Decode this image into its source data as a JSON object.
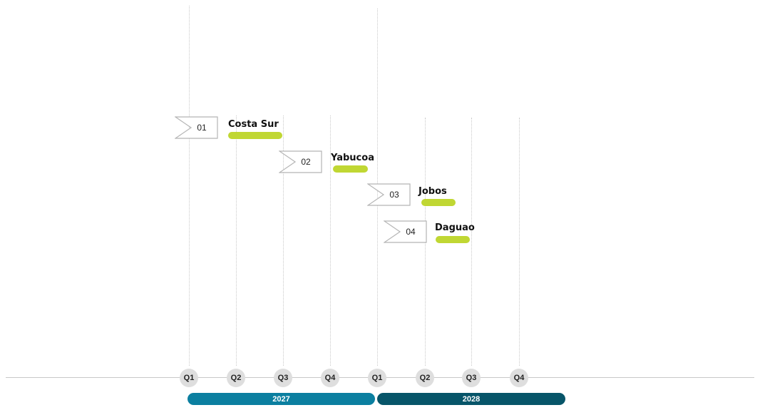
{
  "timeline": {
    "years": [
      {
        "label": "2027",
        "color": "#0b7fa0"
      },
      {
        "label": "2028",
        "color": "#075569"
      }
    ],
    "quarters": [
      "Q1",
      "Q2",
      "Q3",
      "Q4",
      "Q1",
      "Q2",
      "Q3",
      "Q4"
    ]
  },
  "tasks": [
    {
      "num": "01",
      "name": "Costa Sur"
    },
    {
      "num": "02",
      "name": "Yabucoa"
    },
    {
      "num": "03",
      "name": "Jobos"
    },
    {
      "num": "04",
      "name": "Daguao"
    }
  ],
  "colors": {
    "task_bar": "#c0d733",
    "axis": "#c8c8c8",
    "quarter_circle": "#dedede"
  }
}
